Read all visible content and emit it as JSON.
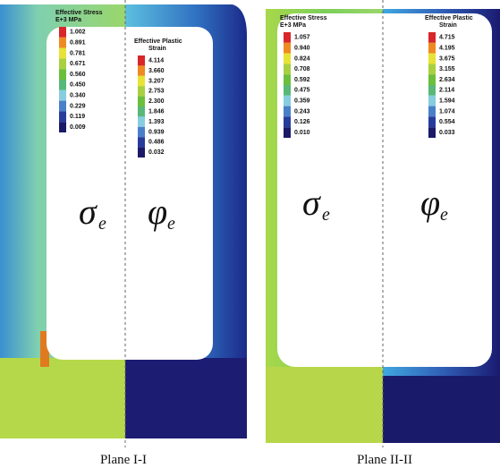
{
  "panels": [
    {
      "caption": "Plane I-I",
      "left": {
        "legend_title": "Effective Stress",
        "unit": "E+3 MPa",
        "levels": [
          "1.002",
          "0.891",
          "0.781",
          "0.671",
          "0.560",
          "0.450",
          "0.340",
          "0.229",
          "0.119",
          "0.009"
        ],
        "symbol": "σ",
        "subscript": "e"
      },
      "right": {
        "legend_title": "Effective Plastic",
        "unit": "Strain",
        "levels": [
          "4.114",
          "3.660",
          "3.207",
          "2.753",
          "2.300",
          "1.846",
          "1.393",
          "0.939",
          "0.486",
          "0.032"
        ],
        "symbol": "φ",
        "subscript": "e"
      }
    },
    {
      "caption": "Plane II-II",
      "left": {
        "legend_title": "Effective Stress",
        "unit": "E+3 MPa",
        "levels": [
          "1.057",
          "0.940",
          "0.824",
          "0.708",
          "0.592",
          "0.475",
          "0.359",
          "0.243",
          "0.126",
          "0.010"
        ],
        "symbol": "σ",
        "subscript": "e"
      },
      "right": {
        "legend_title": "Effective Plastic",
        "unit": "Strain",
        "levels": [
          "4.715",
          "4.195",
          "3.675",
          "3.155",
          "2.634",
          "2.114",
          "1.594",
          "1.074",
          "0.554",
          "0.033"
        ],
        "symbol": "φ",
        "subscript": "e"
      }
    }
  ]
}
